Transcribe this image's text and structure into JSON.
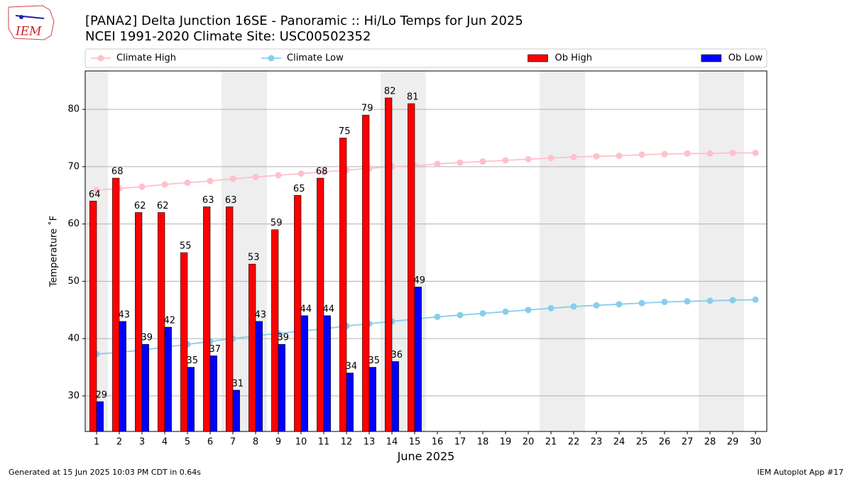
{
  "logo_text": "IEM",
  "footer_left": "Generated at 15 Jun 2025 10:03 PM CDT in 0.64s",
  "footer_right": "IEM Autoplot App #17",
  "chart_data": {
    "type": "bar",
    "title": "[PANA2] Delta Junction 16SE - Panoramic :: Hi/Lo Temps for Jun 2025",
    "subtitle": "NCEI 1991-2020 Climate Site: USC00502352",
    "x_label": "June 2025",
    "y_label": "Temperature ˚F",
    "x": [
      1,
      2,
      3,
      4,
      5,
      6,
      7,
      8,
      9,
      10,
      11,
      12,
      13,
      14,
      15,
      16,
      17,
      18,
      19,
      20,
      21,
      22,
      23,
      24,
      25,
      26,
      27,
      28,
      29,
      30
    ],
    "xlim": [
      0.5,
      30.5
    ],
    "xticks": [
      1,
      2,
      3,
      4,
      5,
      6,
      7,
      8,
      9,
      10,
      11,
      12,
      13,
      14,
      15,
      16,
      17,
      18,
      19,
      20,
      21,
      22,
      23,
      24,
      25,
      26,
      27,
      28,
      29,
      30
    ],
    "ylim": [
      23.8,
      86.7
    ],
    "yticks": [
      30,
      40,
      50,
      60,
      70,
      80
    ],
    "grid": true,
    "legend": "above",
    "series": [
      {
        "name": "Climate High",
        "type": "line",
        "color": "#ffc0cb",
        "values": [
          65.9,
          66.2,
          66.5,
          66.9,
          67.2,
          67.5,
          67.9,
          68.2,
          68.5,
          68.8,
          69.1,
          69.4,
          69.7,
          70.0,
          70.2,
          70.5,
          70.7,
          70.9,
          71.1,
          71.3,
          71.5,
          71.7,
          71.8,
          71.9,
          72.1,
          72.2,
          72.3,
          72.3,
          72.4,
          72.4
        ]
      },
      {
        "name": "Climate Low",
        "type": "line",
        "color": "#87ceeb",
        "values": [
          37.3,
          37.6,
          38.0,
          38.5,
          39.0,
          39.5,
          40.0,
          40.5,
          40.9,
          41.3,
          41.7,
          42.2,
          42.6,
          43.0,
          43.4,
          43.8,
          44.1,
          44.4,
          44.7,
          45.0,
          45.3,
          45.6,
          45.8,
          46.0,
          46.2,
          46.4,
          46.5,
          46.6,
          46.7,
          46.8
        ]
      },
      {
        "name": "Ob High",
        "type": "bar",
        "color": "#ff0000",
        "values": [
          64,
          68,
          62,
          62,
          55,
          63,
          63,
          53,
          59,
          65,
          68,
          75,
          79,
          82,
          81,
          null,
          null,
          null,
          null,
          null,
          null,
          null,
          null,
          null,
          null,
          null,
          null,
          null,
          null,
          null
        ]
      },
      {
        "name": "Ob Low",
        "type": "bar",
        "color": "#0000ff",
        "values": [
          29,
          43,
          39,
          42,
          35,
          37,
          31,
          43,
          39,
          44,
          44,
          34,
          35,
          36,
          49,
          null,
          null,
          null,
          null,
          null,
          null,
          null,
          null,
          null,
          null,
          null,
          null,
          null,
          null,
          null
        ]
      }
    ]
  }
}
